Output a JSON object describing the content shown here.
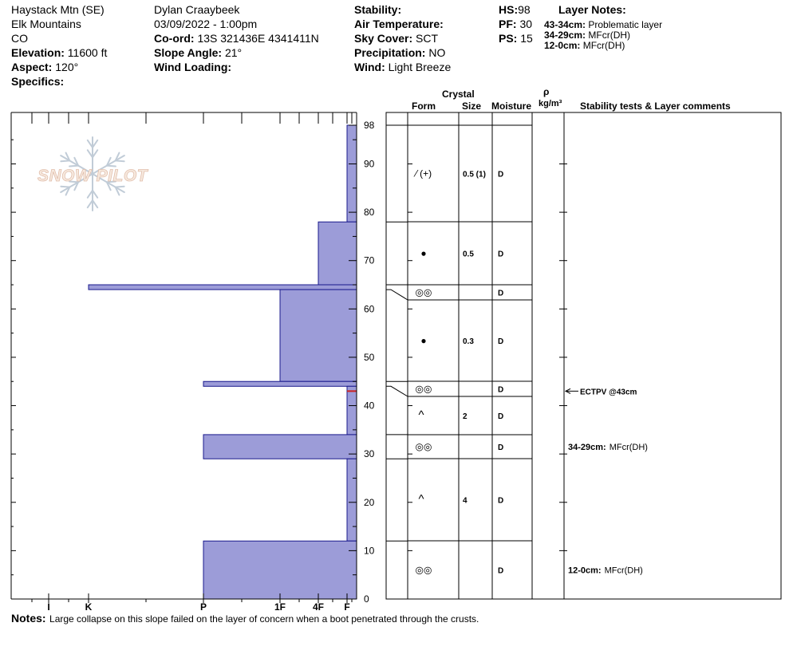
{
  "header": {
    "location": "Haystack Mtn (SE)",
    "range": "Elk Mountains",
    "state": "CO",
    "elevation_label": "Elevation:",
    "elevation_value": "11600 ft",
    "aspect_label": "Aspect:",
    "aspect_value": "120°",
    "specifics_label": "Specifics:",
    "observer": "Dylan Craaybeek",
    "datetime": "03/09/2022 - 1:00pm",
    "coord_label": "Co-ord:",
    "coord_value": "13S 321436E 4341411N",
    "slope_label": "Slope Angle:",
    "slope_value": "21°",
    "wind_loading_label": "Wind Loading:",
    "stability_label": "Stability:",
    "air_temp_label": "Air Temperature:",
    "sky_label": "Sky Cover:",
    "sky_value": "SCT",
    "precip_label": "Precipitation:",
    "precip_value": "NO",
    "wind_label": "Wind:",
    "wind_value": "Light Breeze",
    "hs_label": "HS:",
    "hs_value": "98",
    "pf_label": "PF:",
    "pf_value": "30",
    "ps_label": "PS:",
    "ps_value": "15"
  },
  "layer_notes": {
    "title": "Layer Notes:",
    "items": [
      {
        "range": "43-34cm:",
        "text": "Problematic layer"
      },
      {
        "range": "34-29cm:",
        "text": "MFcr(DH)"
      },
      {
        "range": "12-0cm:",
        "text": "MFcr(DH)"
      }
    ]
  },
  "logo": {
    "text": "SNOW PILOT"
  },
  "columns": {
    "crystal": "Crystal",
    "form": "Form",
    "size": "Size",
    "moisture": "Moisture",
    "rho": "ρ",
    "density_unit": "kg/m³",
    "comments": "Stability tests & Layer comments"
  },
  "hardness_axis": [
    "I",
    "K",
    "P",
    "1F",
    "4F",
    "F"
  ],
  "notes": {
    "label": "Notes:",
    "text": "Large collapse on this slope failed on the layer of concern when a boot penetrated through the crusts."
  },
  "colors": {
    "hardness_fill": "#9c9cd8",
    "hardness_stroke": "#1a1a8c",
    "test_marker": "#cc2222"
  },
  "chart_data": {
    "type": "bar",
    "orientation": "horizontal",
    "ylim": [
      0,
      98
    ],
    "y_ticks": [
      0,
      10,
      20,
      30,
      40,
      50,
      60,
      70,
      80,
      90,
      98
    ],
    "hardness_scale": [
      "I",
      "K",
      "P",
      "1F",
      "4F",
      "F"
    ],
    "layers": [
      {
        "top": 98,
        "bottom": 78,
        "hardness": "F",
        "form": "fragment-rounding",
        "size": "0.5 (1)",
        "moisture": "D"
      },
      {
        "top": 78,
        "bottom": 65,
        "hardness": "4F",
        "form": "rounded-grain",
        "size": "0.5",
        "moisture": "D"
      },
      {
        "top": 65,
        "bottom": 64,
        "hardness": "K",
        "form": "melt-freeze",
        "size": "",
        "moisture": "D"
      },
      {
        "top": 64,
        "bottom": 45,
        "hardness": "1F",
        "form": "rounded-grain",
        "size": "0.3",
        "moisture": "D"
      },
      {
        "top": 45,
        "bottom": 44,
        "hardness": "P",
        "form": "melt-freeze",
        "size": "",
        "moisture": "D"
      },
      {
        "top": 44,
        "bottom": 34,
        "hardness": "F",
        "form": "depth-hoar",
        "size": "2",
        "moisture": "D"
      },
      {
        "top": 34,
        "bottom": 29,
        "hardness": "P",
        "form": "melt-freeze",
        "size": "",
        "moisture": "D"
      },
      {
        "top": 29,
        "bottom": 12,
        "hardness": "F",
        "form": "depth-hoar",
        "size": "4",
        "moisture": "D"
      },
      {
        "top": 12,
        "bottom": 0,
        "hardness": "P",
        "form": "melt-freeze",
        "size": "",
        "moisture": "D"
      }
    ],
    "form_glyphs": {
      "fragment-rounding": "⁄ (+)",
      "rounded-grain": "●",
      "melt-freeze": "◎◎",
      "depth-hoar": "^"
    },
    "stability_tests": [
      {
        "depth": 43,
        "text": "ECTPV @43cm"
      }
    ],
    "layer_comments": [
      {
        "depth": 31.5,
        "range": "34-29cm:",
        "text": "MFcr(DH)"
      },
      {
        "depth": 6,
        "range": "12-0cm:",
        "text": "MFcr(DH)"
      }
    ]
  }
}
